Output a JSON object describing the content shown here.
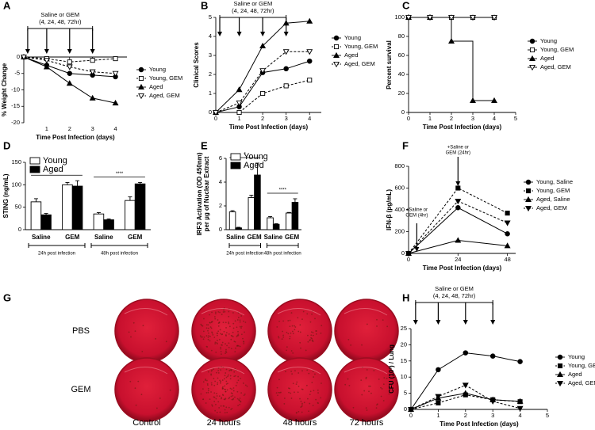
{
  "chart_data": [
    {
      "type": "line",
      "label": "A",
      "annotation": [
        "Saline or GEM",
        "(4, 24, 48, 72hr)"
      ],
      "arrows": [
        0.17,
        1,
        2,
        3
      ],
      "x": [
        0,
        1,
        2,
        3,
        4
      ],
      "xlim": [
        0,
        4.5
      ],
      "xticks": [
        1,
        2,
        3,
        4
      ],
      "ylim": [
        -20,
        0
      ],
      "yticks": [
        0,
        -5,
        -10,
        -15,
        -20
      ],
      "xlabel": "Time Post Infection (days)",
      "ylabel": "% Weight Change",
      "legend": "right",
      "series": [
        {
          "name": "Young",
          "color": "#000000",
          "marker": "circle",
          "filled": true,
          "dashed": false,
          "values": [
            0,
            -2.5,
            -5,
            -5.5,
            -6
          ]
        },
        {
          "name": "Young, GEM",
          "color": "#000000",
          "marker": "square",
          "filled": false,
          "dashed": true,
          "values": [
            0,
            -0.5,
            -1.5,
            -1,
            -0.5
          ]
        },
        {
          "name": "Aged",
          "color": "#000000",
          "marker": "triangle",
          "filled": true,
          "dashed": false,
          "values": [
            0,
            -3,
            -8,
            -12.5,
            -14
          ]
        },
        {
          "name": "Aged, GEM",
          "color": "#000000",
          "marker": "triangle-down",
          "filled": false,
          "dashed": true,
          "values": [
            0,
            -1,
            -3,
            -4.5,
            -5
          ]
        }
      ]
    },
    {
      "type": "line",
      "label": "B",
      "annotation": [
        "Saline or GEM",
        "(4, 24, 48, 72hr)"
      ],
      "arrows": [
        0.17,
        1,
        2,
        3
      ],
      "x": [
        0,
        1,
        2,
        3,
        4
      ],
      "xlim": [
        0,
        4.5
      ],
      "xticks": [
        0,
        1,
        2,
        3,
        4
      ],
      "ylim": [
        0,
        5
      ],
      "yticks": [
        0,
        1,
        2,
        3,
        4,
        5
      ],
      "xlabel": "Time Post Infection (days)",
      "ylabel": "Clinical Scores",
      "legend": "right",
      "series": [
        {
          "name": "Young",
          "color": "#000000",
          "marker": "circle",
          "filled": true,
          "dashed": false,
          "values": [
            0,
            0.3,
            2.1,
            2.3,
            2.7
          ]
        },
        {
          "name": "Young, GEM",
          "color": "#000000",
          "marker": "square",
          "filled": false,
          "dashed": true,
          "values": [
            0,
            0,
            1,
            1.4,
            1.7
          ]
        },
        {
          "name": "Aged",
          "color": "#000000",
          "marker": "triangle",
          "filled": true,
          "dashed": false,
          "values": [
            0,
            1.2,
            3.5,
            4.7,
            4.8
          ]
        },
        {
          "name": "Aged, GEM",
          "color": "#000000",
          "marker": "triangle-down",
          "filled": false,
          "dashed": true,
          "values": [
            0,
            0.5,
            2.2,
            3.2,
            3.2
          ]
        }
      ]
    },
    {
      "type": "step",
      "label": "C",
      "x": [
        0,
        1,
        2,
        3,
        4
      ],
      "xlim": [
        0,
        5
      ],
      "xticks": [
        0,
        1,
        2,
        3,
        4,
        5
      ],
      "ylim": [
        0,
        100
      ],
      "yticks": [
        0,
        20,
        40,
        60,
        80,
        100
      ],
      "xlabel": "Time Post Infection (days)",
      "ylabel": "Percent survival",
      "legend": "right",
      "series": [
        {
          "name": "Young",
          "color": "#000000",
          "marker": "circle",
          "filled": true,
          "dashed": false,
          "values": [
            100,
            100,
            100,
            100,
            100
          ]
        },
        {
          "name": "Young, GEM",
          "color": "#000000",
          "marker": "square",
          "filled": false,
          "dashed": false,
          "values": [
            100,
            100,
            100,
            100,
            100
          ]
        },
        {
          "name": "Aged",
          "color": "#000000",
          "marker": "triangle",
          "filled": true,
          "dashed": false,
          "values": [
            100,
            100,
            75,
            12.5,
            12.5
          ]
        },
        {
          "name": "Aged, GEM",
          "color": "#000000",
          "marker": "triangle-down",
          "filled": false,
          "dashed": false,
          "values": [
            100,
            100,
            100,
            100,
            100
          ]
        }
      ]
    },
    {
      "type": "bar",
      "label": "D",
      "categories": [
        "Saline",
        "GEM",
        "Saline",
        "GEM"
      ],
      "groups": [
        "24h post infection",
        "48h post infection"
      ],
      "significance": [
        "**",
        "****"
      ],
      "ylim": [
        0,
        150
      ],
      "yticks": [
        0,
        50,
        100,
        150
      ],
      "ylabel": "STING (ng/mL)",
      "legend": "upper-left",
      "series": [
        {
          "name": "Young",
          "color": "#ffffff",
          "values": [
            62,
            100,
            35,
            65
          ],
          "errors": [
            7,
            5,
            3,
            8
          ]
        },
        {
          "name": "Aged",
          "color": "#000000",
          "values": [
            33,
            97,
            22,
            102
          ],
          "errors": [
            3,
            12,
            2,
            3
          ]
        }
      ]
    },
    {
      "type": "bar",
      "label": "E",
      "categories": [
        "Saline",
        "GEM",
        "Saline",
        "GEM"
      ],
      "groups": [
        "24h post infection",
        "48h post infection"
      ],
      "significance": [
        "*",
        "****"
      ],
      "ylim": [
        0,
        6
      ],
      "yticks": [
        0,
        2,
        4,
        6
      ],
      "ylabel": [
        "IRF3 Activation (OD 450nm)",
        "per µg of Nuclear Extract"
      ],
      "legend": "upper-left",
      "series": [
        {
          "name": "Young",
          "color": "#ffffff",
          "values": [
            1.5,
            2.7,
            1.0,
            1.4
          ],
          "errors": [
            0.1,
            0.2,
            0.1,
            0.05
          ]
        },
        {
          "name": "Aged",
          "color": "#000000",
          "values": [
            0.15,
            4.6,
            0.45,
            2.3
          ],
          "errors": [
            0.05,
            1.0,
            0.05,
            0.3
          ]
        }
      ]
    },
    {
      "type": "line",
      "label": "F",
      "callouts": [
        {
          "x": 4,
          "text": [
            "+Saline or",
            "GEM (4hr)"
          ]
        },
        {
          "x": 24,
          "text": [
            "+Saline or",
            "GEM (24hr)"
          ]
        }
      ],
      "x": [
        0,
        24,
        48
      ],
      "xlim": [
        0,
        52
      ],
      "xticks": [
        0,
        24,
        48
      ],
      "ylim": [
        0,
        800
      ],
      "yticks": [
        0,
        200,
        400,
        600,
        800
      ],
      "xlabel": "Time Post Infection (days)",
      "ylabel": "IFN-β (pg/mL)",
      "legend": "right",
      "series": [
        {
          "name": "Young, Saline",
          "color": "#000000",
          "marker": "circle",
          "filled": true,
          "dashed": false,
          "values": [
            0,
            420,
            180
          ]
        },
        {
          "name": "Young, GEM",
          "color": "#000000",
          "marker": "square",
          "filled": true,
          "dashed": true,
          "values": [
            0,
            600,
            370
          ]
        },
        {
          "name": "Aged, Saline",
          "color": "#000000",
          "marker": "triangle",
          "filled": true,
          "dashed": false,
          "values": [
            0,
            120,
            70
          ]
        },
        {
          "name": "Aged, GEM",
          "color": "#000000",
          "marker": "triangle-down",
          "filled": true,
          "dashed": true,
          "values": [
            0,
            480,
            280
          ]
        }
      ]
    },
    {
      "type": "image-grid",
      "label": "G",
      "rows": [
        "PBS",
        "GEM"
      ],
      "columns": [
        "Control",
        "24 hours",
        "48 hours",
        "72 hours"
      ]
    },
    {
      "type": "line",
      "label": "H",
      "annotation": [
        "Saline or GEM",
        "(4, 24, 48, 72hr)"
      ],
      "arrows": [
        0.17,
        1,
        2,
        3
      ],
      "x": [
        0,
        1,
        2,
        3,
        4
      ],
      "xlim": [
        0,
        5
      ],
      "xticks": [
        0,
        1,
        2,
        3,
        4,
        5
      ],
      "ylim": [
        0,
        25
      ],
      "yticks": [
        0,
        5,
        10,
        15,
        20,
        25
      ],
      "xlabel": "Time Post Infection (days)",
      "ylabel": "CFU (10³) / Lung",
      "legend": "right",
      "series": [
        {
          "name": "Young",
          "color": "#000000",
          "marker": "circle",
          "filled": true,
          "dashed": false,
          "values": [
            0,
            12.3,
            17.5,
            16.5,
            14.8
          ]
        },
        {
          "name": "Young, GEM",
          "color": "#000000",
          "marker": "square",
          "filled": true,
          "dashed": true,
          "values": [
            0,
            2,
            4.5,
            3,
            2.4
          ]
        },
        {
          "name": "Aged",
          "color": "#000000",
          "marker": "triangle",
          "filled": true,
          "dashed": false,
          "values": [
            0,
            3.5,
            5,
            3,
            2.5
          ]
        },
        {
          "name": "Aged, GEM",
          "color": "#000000",
          "marker": "triangle-down",
          "filled": true,
          "dashed": true,
          "values": [
            0,
            4,
            7.5,
            2.5,
            0.3
          ]
        }
      ]
    }
  ]
}
